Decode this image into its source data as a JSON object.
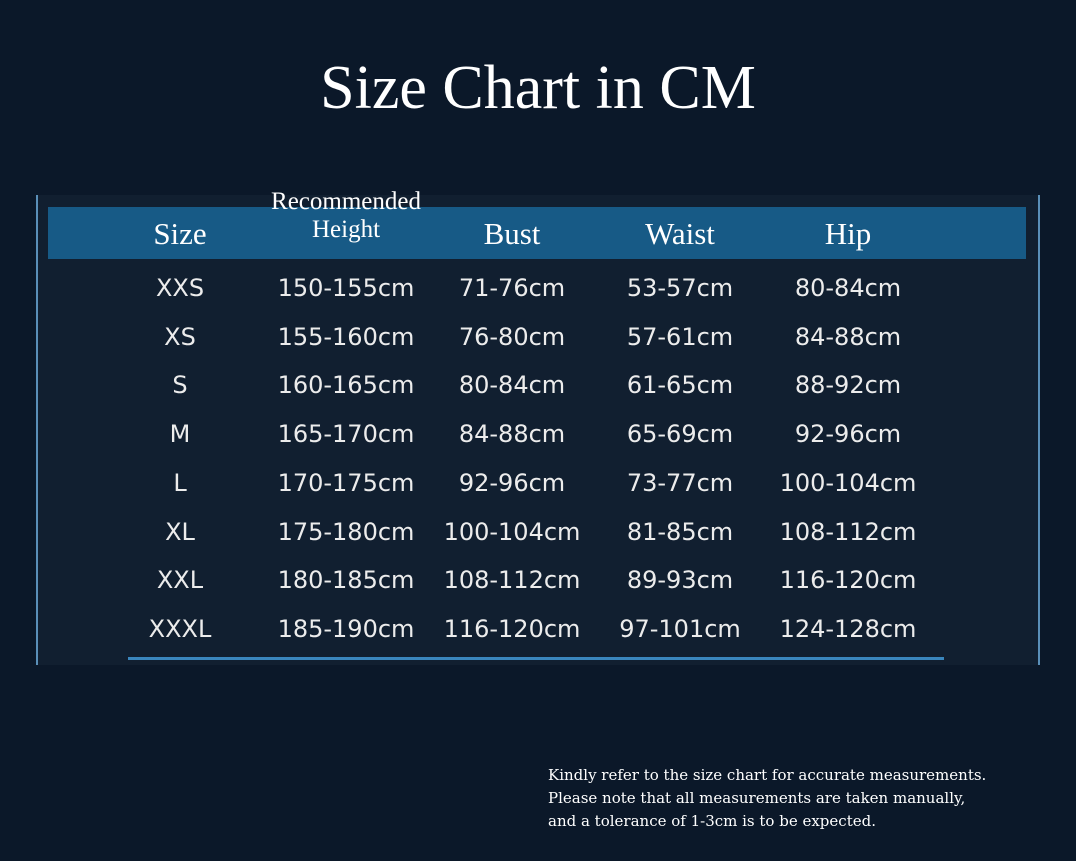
{
  "title": "Size Chart in CM",
  "table": {
    "header": [
      "Size",
      "Recommended\nHeight",
      "Bust",
      "Waist",
      "Hip"
    ],
    "rows": [
      [
        "XXS",
        "150-155cm",
        "71-76cm",
        "53-57cm",
        "80-84cm"
      ],
      [
        "XS",
        "155-160cm",
        "76-80cm",
        "57-61cm",
        "84-88cm"
      ],
      [
        "S",
        "160-165cm",
        "80-84cm",
        "61-65cm",
        "88-92cm"
      ],
      [
        "M",
        "165-170cm",
        "84-88cm",
        "65-69cm",
        "92-96cm"
      ],
      [
        "L",
        "170-175cm",
        "92-96cm",
        "73-77cm",
        "100-104cm"
      ],
      [
        "XL",
        "175-180cm",
        "100-104cm",
        "81-85cm",
        "108-112cm"
      ],
      [
        "XXL",
        "180-185cm",
        "108-112cm",
        "89-93cm",
        "116-120cm"
      ],
      [
        "XXXL",
        "185-190cm",
        "116-120cm",
        "97-101cm",
        "124-128cm"
      ]
    ]
  },
  "note": [
    "Kindly refer to the size chart for accurate measurements.",
    "Please note that all measurements are taken manually,",
    "and a tolerance of 1-3cm is to be expected."
  ]
}
